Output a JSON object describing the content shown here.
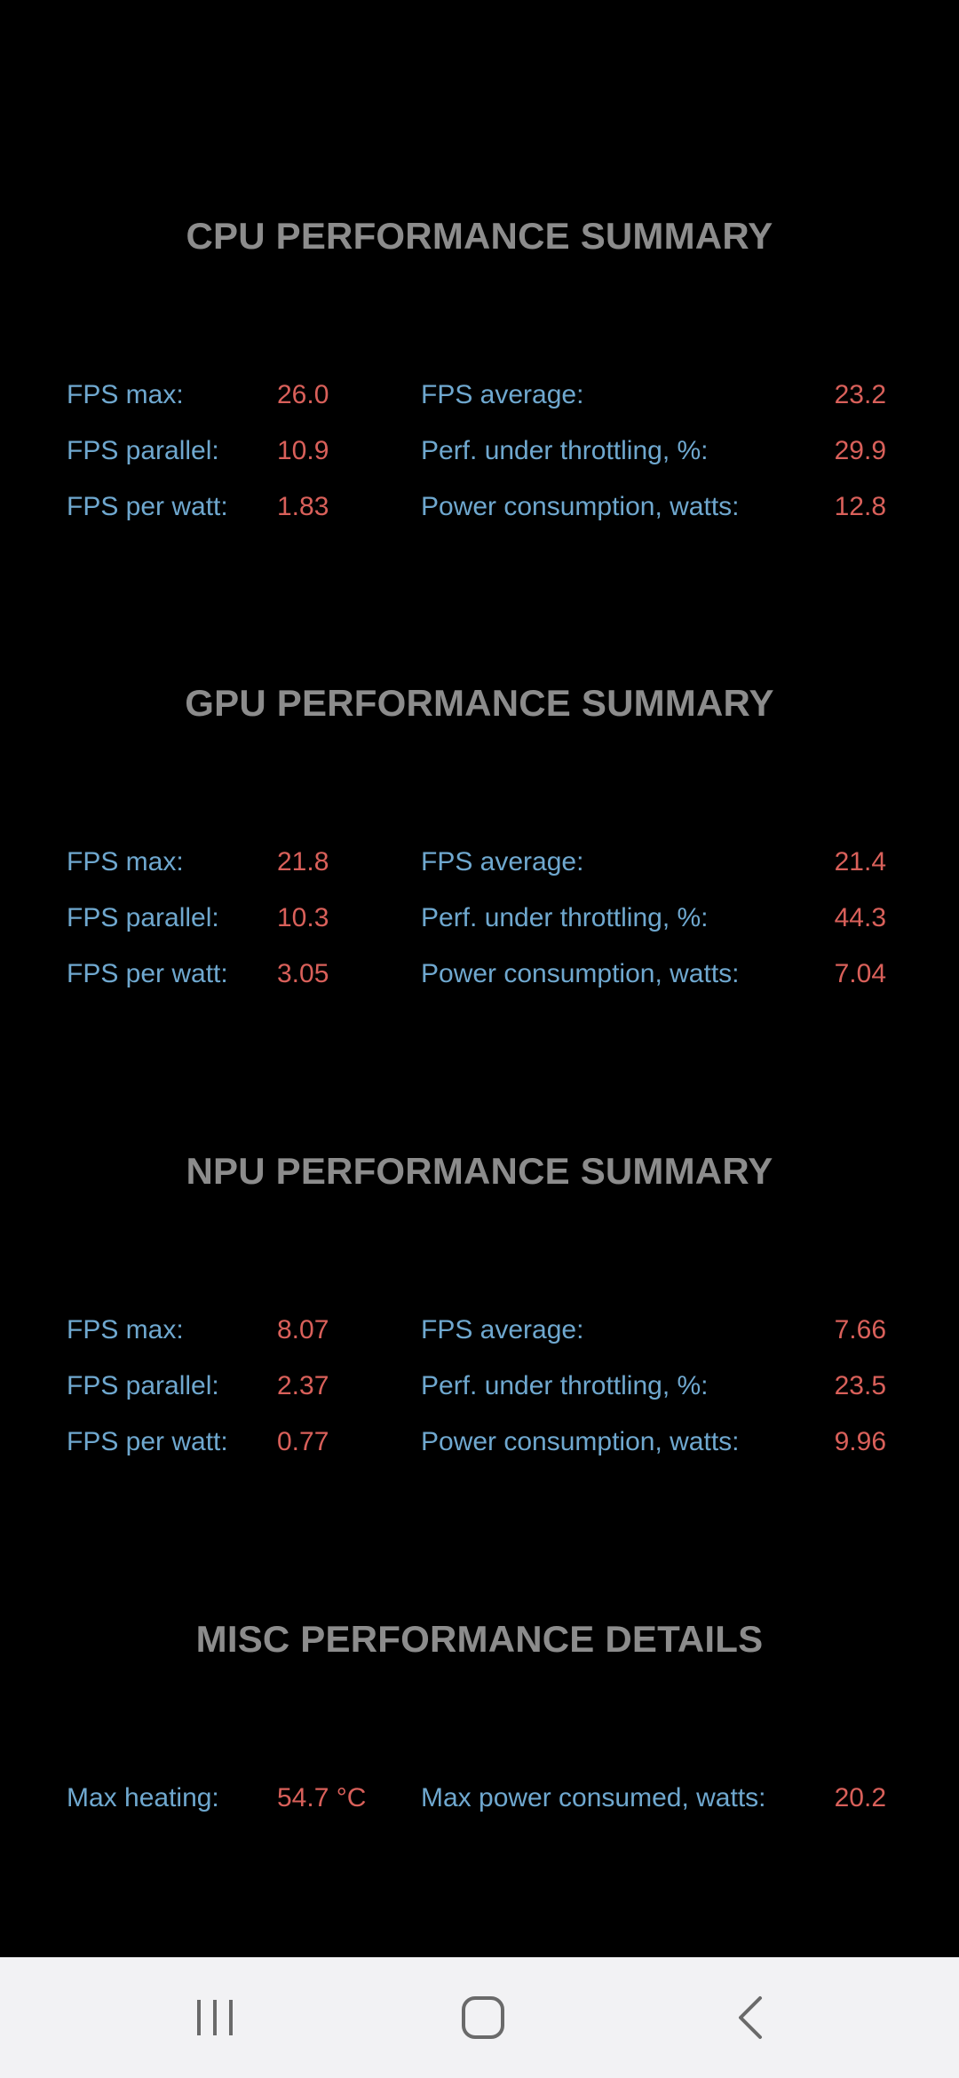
{
  "sections": [
    {
      "title": "CPU PERFORMANCE SUMMARY",
      "rows": [
        {
          "left_label": "FPS max:",
          "left_value": "26.0",
          "right_label": "FPS average:",
          "right_value": "23.2"
        },
        {
          "left_label": "FPS parallel:",
          "left_value": "10.9",
          "right_label": "Perf. under throttling, %:",
          "right_value": "29.9"
        },
        {
          "left_label": "FPS per watt:",
          "left_value": "1.83",
          "right_label": "Power consumption, watts:",
          "right_value": "12.8"
        }
      ]
    },
    {
      "title": "GPU PERFORMANCE SUMMARY",
      "rows": [
        {
          "left_label": "FPS max:",
          "left_value": "21.8",
          "right_label": "FPS average:",
          "right_value": "21.4"
        },
        {
          "left_label": "FPS parallel:",
          "left_value": "10.3",
          "right_label": "Perf. under throttling, %:",
          "right_value": "44.3"
        },
        {
          "left_label": "FPS per watt:",
          "left_value": "3.05",
          "right_label": "Power consumption, watts:",
          "right_value": "7.04"
        }
      ]
    },
    {
      "title": "NPU PERFORMANCE SUMMARY",
      "rows": [
        {
          "left_label": "FPS max:",
          "left_value": "8.07",
          "right_label": "FPS average:",
          "right_value": "7.66"
        },
        {
          "left_label": "FPS parallel:",
          "left_value": "2.37",
          "right_label": "Perf. under throttling, %:",
          "right_value": "23.5"
        },
        {
          "left_label": "FPS per watt:",
          "left_value": "0.77",
          "right_label": "Power consumption, watts:",
          "right_value": "9.96"
        }
      ]
    },
    {
      "title": "MISC PERFORMANCE DETAILS",
      "rows": [
        {
          "left_label": "Max heating:",
          "left_value": "54.7 °C",
          "right_label": "Max power consumed, watts:",
          "right_value": "20.2"
        }
      ]
    }
  ],
  "navbar": {
    "icons": [
      "recent-apps-icon",
      "home-icon",
      "back-icon"
    ]
  },
  "colors": {
    "background": "#000000",
    "title": "#8c8c8c",
    "label": "#6fa8cf",
    "value": "#d9605a",
    "navbar_bg": "#f2f2f4",
    "navbar_icon": "#6a6a6a"
  }
}
